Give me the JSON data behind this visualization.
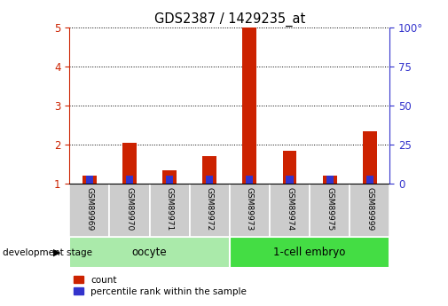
{
  "title": "GDS2387 / 1429235_at",
  "samples": [
    "GSM89969",
    "GSM89970",
    "GSM89971",
    "GSM89972",
    "GSM89973",
    "GSM89974",
    "GSM89975",
    "GSM89999"
  ],
  "count_values": [
    1.2,
    2.05,
    1.35,
    1.7,
    5.0,
    1.85,
    1.2,
    2.35
  ],
  "pct_display": [
    5,
    5,
    5,
    5,
    5,
    5,
    5,
    5
  ],
  "bar_width": 0.35,
  "blue_bar_width": 0.18,
  "ylim_left": [
    1,
    5
  ],
  "ylim_right": [
    0,
    100
  ],
  "yticks_left": [
    1,
    2,
    3,
    4,
    5
  ],
  "yticks_right": [
    0,
    25,
    50,
    75,
    100
  ],
  "ytick_labels_right": [
    "0",
    "25",
    "50",
    "75",
    "100°"
  ],
  "count_color": "#cc2200",
  "percentile_color": "#3333cc",
  "groups": [
    {
      "label": "oocyte",
      "n": 4,
      "color": "#aaeaaa"
    },
    {
      "label": "1-cell embryo",
      "n": 4,
      "color": "#44dd44"
    }
  ],
  "sample_label_bg": "#cccccc",
  "legend_count_label": "count",
  "legend_percentile_label": "percentile rank within the sample",
  "dev_stage_label": "development stage",
  "left_axis_color": "#cc2200",
  "right_axis_color": "#3333cc",
  "background_color": "#ffffff",
  "grid_color": "#000000"
}
